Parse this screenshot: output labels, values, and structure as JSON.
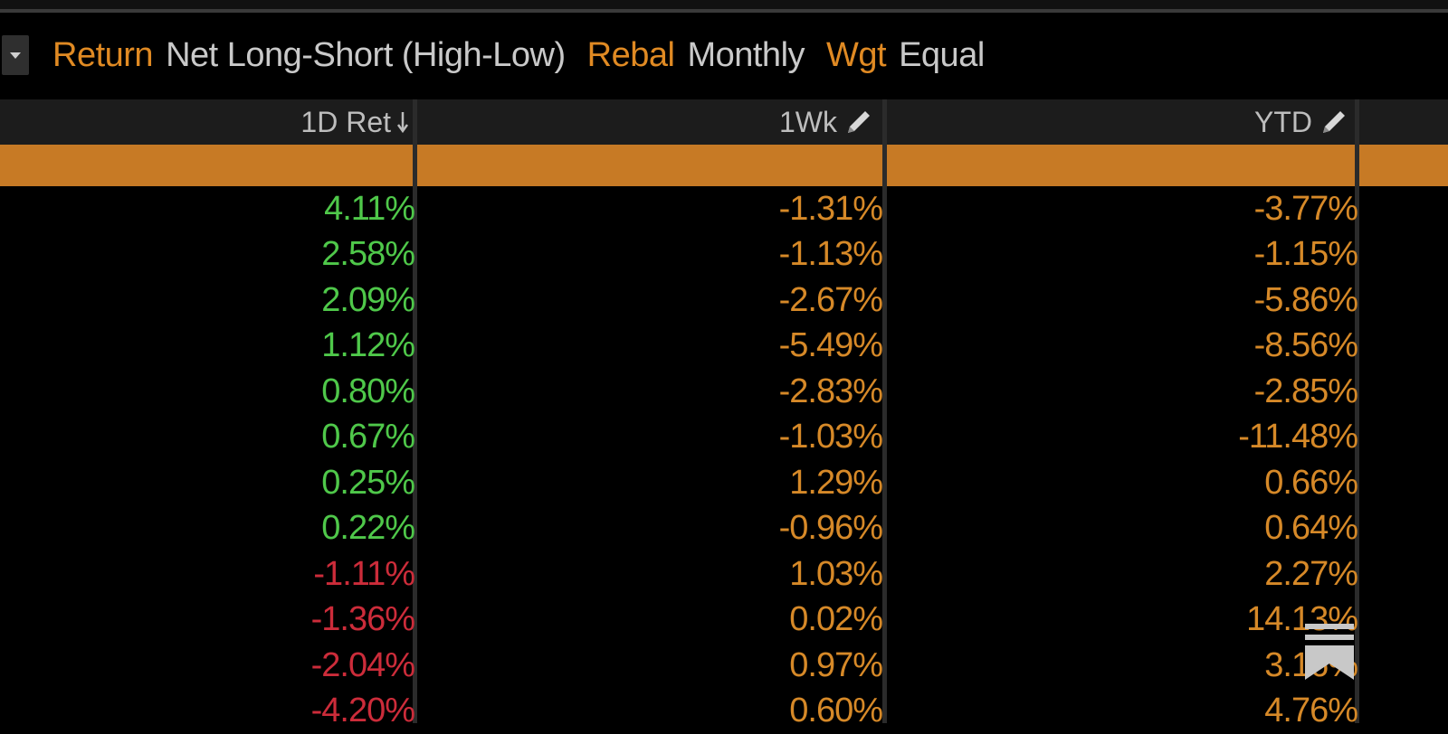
{
  "filters": {
    "return_label": "Return",
    "return_value": "Net Long-Short (High-Low)",
    "rebal_label": "Rebal",
    "rebal_value": "Monthly",
    "wgt_label": "Wgt",
    "wgt_value": "Equal"
  },
  "columns": {
    "col1": "1D Ret",
    "col2": "1Wk",
    "col3": "YTD"
  },
  "colors": {
    "accent": "#e08a23",
    "band": "#c77a25",
    "positive": "#4fc84a",
    "negative": "#cc2c3a",
    "neutral_value": "#d68928"
  },
  "icons": {
    "dropdown": "chevron-down-icon",
    "sort": "sort-down-arrow-icon",
    "edit": "pencil-icon",
    "overlay": "bookmark-menu-icon"
  },
  "rows": [
    {
      "d1": "4.11%",
      "wk": "-1.31%",
      "ytd": "-3.77%"
    },
    {
      "d1": "2.58%",
      "wk": "-1.13%",
      "ytd": "-1.15%"
    },
    {
      "d1": "2.09%",
      "wk": "-2.67%",
      "ytd": "-5.86%"
    },
    {
      "d1": "1.12%",
      "wk": "-5.49%",
      "ytd": "-8.56%"
    },
    {
      "d1": "0.80%",
      "wk": "-2.83%",
      "ytd": "-2.85%"
    },
    {
      "d1": "0.67%",
      "wk": "-1.03%",
      "ytd": "-11.48%"
    },
    {
      "d1": "0.25%",
      "wk": "1.29%",
      "ytd": "0.66%"
    },
    {
      "d1": "0.22%",
      "wk": "-0.96%",
      "ytd": "0.64%"
    },
    {
      "d1": "-1.11%",
      "wk": "1.03%",
      "ytd": "2.27%"
    },
    {
      "d1": "-1.36%",
      "wk": "0.02%",
      "ytd": "14.13%"
    },
    {
      "d1": "-2.04%",
      "wk": "0.97%",
      "ytd": "3.16%"
    },
    {
      "d1": "-4.20%",
      "wk": "0.60%",
      "ytd": "4.76%"
    }
  ]
}
